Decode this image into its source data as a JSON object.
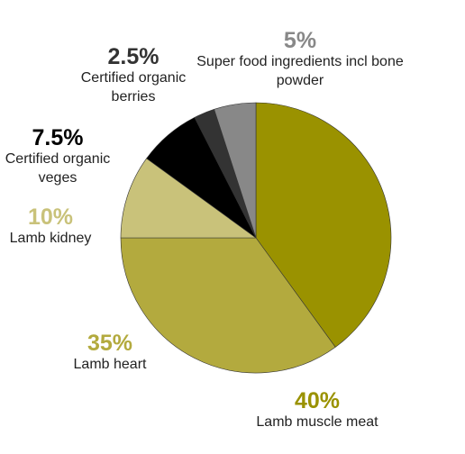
{
  "chart_data": {
    "type": "pie",
    "categories": [
      "Lamb muscle meat",
      "Lamb heart",
      "Lamb kidney",
      "Certified organic veges",
      "Certified organic berries",
      "Super food ingredients incl bone powder"
    ],
    "values": [
      40,
      35,
      10,
      7.5,
      2.5,
      5
    ],
    "value_labels": [
      "40%",
      "35%",
      "10%",
      "7.5%",
      "2.5%",
      "5%"
    ],
    "colors": [
      "#9a9200",
      "#b3aa3e",
      "#c9c27a",
      "#000000",
      "#333333",
      "#888888"
    ]
  }
}
